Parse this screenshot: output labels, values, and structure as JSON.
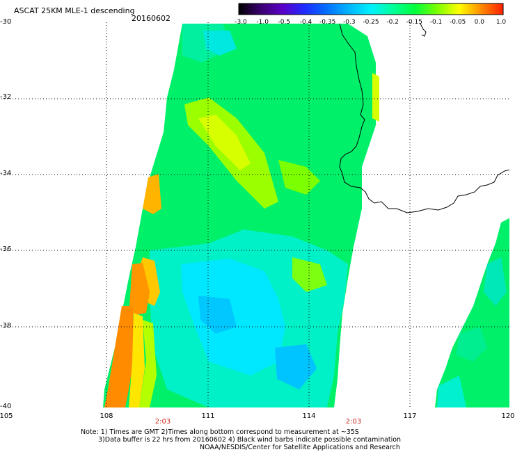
{
  "header": {
    "title": "ASCAT 25KM MLE-1 descending",
    "date": "20160602"
  },
  "colorbar": {
    "labels": [
      "-3.0",
      "-1.0",
      "-0.5",
      "-0.4",
      "-0.35",
      "-0.3",
      "-0.25",
      "-0.2",
      "-0.15",
      "-0.1",
      "-0.05",
      "0.0",
      "1.0"
    ],
    "colors": [
      "#000000",
      "#3a0070",
      "#5a00c8",
      "#1e2bff",
      "#0070ff",
      "#00b4ff",
      "#00f0ff",
      "#00ff9a",
      "#00ff3c",
      "#7aff00",
      "#ffff00",
      "#ff8c00",
      "#ff1e00"
    ]
  },
  "axes": {
    "lat_labels": [
      "-30",
      "-32",
      "-34",
      "-36",
      "-38",
      "-40"
    ],
    "lon_labels": [
      "105",
      "108",
      "111",
      "114",
      "117",
      "120"
    ],
    "time_labels": [
      "2:03",
      "2:03"
    ]
  },
  "notes": {
    "line1": "Note: 1) Times are GMT 2)Times along bottom correspond to measurement at ~35S",
    "line2": "3)Data buffer is 22 hrs from 20160602 4) Black wind barbs indicate possible contamination",
    "line3": "NOAA/NESDIS/Center for Satellite Applications and Research"
  }
}
